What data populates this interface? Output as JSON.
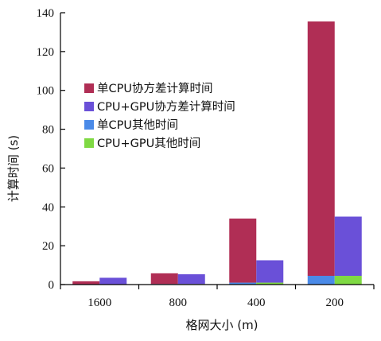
{
  "chart_data": {
    "type": "bar",
    "stacked": true,
    "categories": [
      "1600",
      "800",
      "400",
      "200"
    ],
    "xlabel": "格网大小 (m)",
    "ylabel": "计算时间 (s)",
    "ylim": [
      0,
      140
    ],
    "yticks": [
      0,
      20,
      40,
      60,
      80,
      100,
      120,
      140
    ],
    "grid": false,
    "legend_position": "left-middle",
    "groups": [
      {
        "name": "单CPU",
        "position": "left",
        "segments": [
          {
            "series": "单CPU其他时间",
            "values": [
              0.2,
              0.3,
              1.0,
              4.5
            ]
          },
          {
            "series": "单CPU协方差计算时间",
            "values": [
              1.5,
              5.5,
              33.0,
              131.0
            ]
          }
        ]
      },
      {
        "name": "CPU+GPU",
        "position": "right",
        "segments": [
          {
            "series": "CPU+GPU其他时间",
            "values": [
              0.2,
              0.3,
              1.0,
              4.5
            ]
          },
          {
            "series": "CPU+GPU协方差计算时间",
            "values": [
              3.3,
              5.0,
              11.5,
              30.5
            ]
          }
        ]
      }
    ],
    "legend": [
      {
        "label": "单CPU协方差计算时间",
        "color": "#b02e55"
      },
      {
        "label": "CPU+GPU协方差计算时间",
        "color": "#6a50d8"
      },
      {
        "label": "单CPU其他时间",
        "color": "#4a8ae8"
      },
      {
        "label": "CPU+GPU其他时间",
        "color": "#7fd943"
      }
    ],
    "colors": {
      "单CPU协方差计算时间": "#b02e55",
      "CPU+GPU协方差计算时间": "#6a50d8",
      "单CPU其他时间": "#4a8ae8",
      "CPU+GPU其他时间": "#7fd943"
    }
  }
}
